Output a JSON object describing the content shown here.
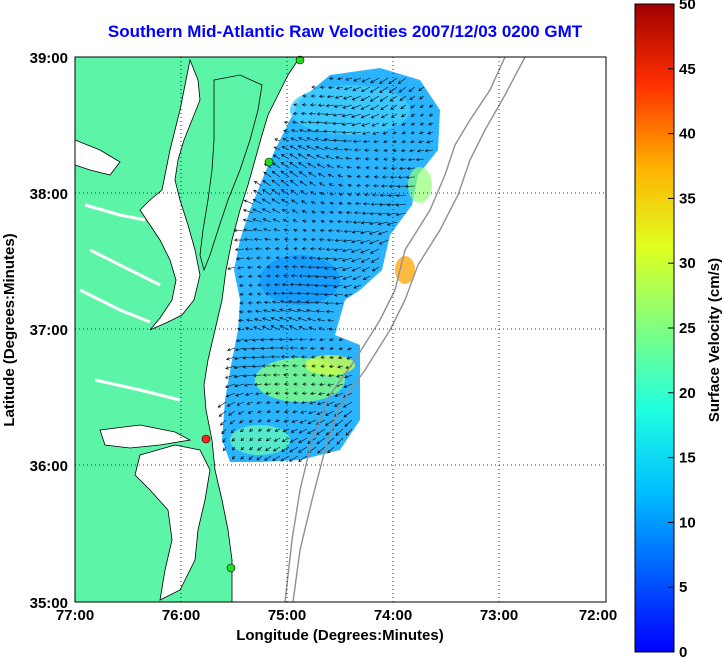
{
  "title": "Southern Mid-Atlantic Raw Velocities 2007/12/03 0200 GMT",
  "xlabel": "Longitude (Degrees:Minutes)",
  "ylabel": "Latitude (Degrees:Minutes)",
  "colorbar_label": "Surface Velocity (cm/s)",
  "x_ticks": [
    "77:00",
    "76:00",
    "75:00",
    "74:00",
    "73:00",
    "72:00"
  ],
  "y_ticks": [
    "39:00",
    "38:00",
    "37:00",
    "36:00",
    "35:00"
  ],
  "colorbar_ticks": [
    "50",
    "45",
    "40",
    "35",
    "30",
    "25",
    "20",
    "15",
    "10",
    "5",
    "0"
  ],
  "colors": {
    "land": "#5cf5a8",
    "title": "#0000ff",
    "grid": "#000000",
    "bathymetry": "#909090",
    "site_active": "#22dd22",
    "site_alert": "#ff2020"
  },
  "chart_data": {
    "type": "heatmap",
    "title": "Southern Mid-Atlantic Raw Velocities 2007/12/03 0200 GMT",
    "xlabel": "Longitude (Degrees:Minutes)",
    "ylabel": "Latitude (Degrees:Minutes)",
    "xlim": [
      -77,
      -72
    ],
    "ylim": [
      35,
      39
    ],
    "colorbar": {
      "label": "Surface Velocity (cm/s)",
      "range": [
        0,
        50
      ]
    },
    "grid": true
  }
}
